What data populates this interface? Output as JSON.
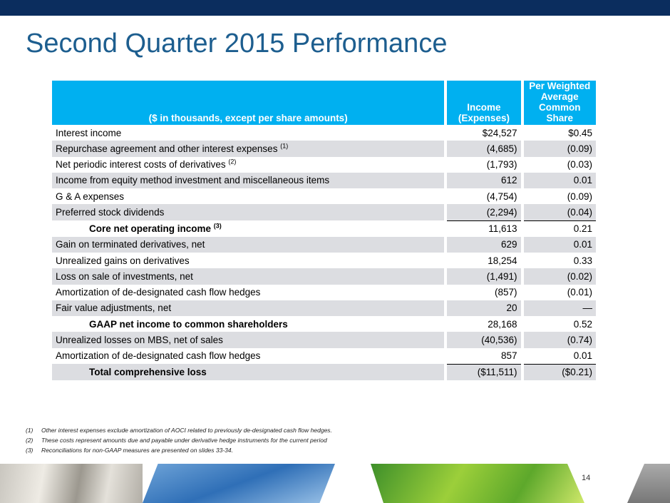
{
  "header": {
    "title": "Second Quarter 2015 Performance"
  },
  "table": {
    "columns": [
      "($ in thousands, except per share amounts)",
      "Income (Expenses)",
      "Per Weighted Average Common Share"
    ],
    "rows": [
      {
        "label": "Interest income",
        "income": "$24,527",
        "per_share": "$0.45"
      },
      {
        "label": "Repurchase agreement and other interest expenses",
        "note": "(1)",
        "income": "(4,685)",
        "per_share": "(0.09)"
      },
      {
        "label": "Net periodic interest costs of derivatives",
        "note": "(2)",
        "income": "(1,793)",
        "per_share": "(0.03)"
      },
      {
        "label": "Income from equity method investment and miscellaneous items",
        "income": "612",
        "per_share": "0.01"
      },
      {
        "label": "G & A expenses",
        "income": "(4,754)",
        "per_share": "(0.09)"
      },
      {
        "label": "Preferred stock dividends",
        "income": "(2,294)",
        "per_share": "(0.04)"
      },
      {
        "label": "Core net operating income",
        "note": "(3)",
        "income": "11,613",
        "per_share": "0.21"
      },
      {
        "label": "Gain on terminated derivatives, net",
        "income": "629",
        "per_share": "0.01"
      },
      {
        "label": "Unrealized gains on derivatives",
        "income": "18,254",
        "per_share": "0.33"
      },
      {
        "label": "Loss on sale of investments, net",
        "income": "(1,491)",
        "per_share": "(0.02)"
      },
      {
        "label": "Amortization of de-designated cash flow hedges",
        "income": "(857)",
        "per_share": "(0.01)"
      },
      {
        "label": "Fair value adjustments, net",
        "income": "20",
        "per_share": "—"
      },
      {
        "label": "GAAP net income to common shareholders",
        "income": "28,168",
        "per_share": "0.52"
      },
      {
        "label": "Unrealized losses on MBS, net of sales",
        "income": "(40,536)",
        "per_share": "(0.74)"
      },
      {
        "label": "Amortization of de-designated cash flow hedges",
        "income": "857",
        "per_share": "0.01"
      },
      {
        "label": "Total comprehensive loss",
        "income": "($11,511)",
        "per_share": "($0.21)"
      }
    ]
  },
  "footnotes": [
    {
      "marker": "(1)",
      "text": "Other interest expenses exclude amortization of AOCI related to previously de-designated cash flow hedges."
    },
    {
      "marker": "(2)",
      "text": "These costs represent amounts due and payable under derivative hedge instruments for the current period"
    },
    {
      "marker": "(3)",
      "text": "Reconciliations for non-GAAP measures are presented on slides 33-34."
    }
  ],
  "page_number": "14"
}
